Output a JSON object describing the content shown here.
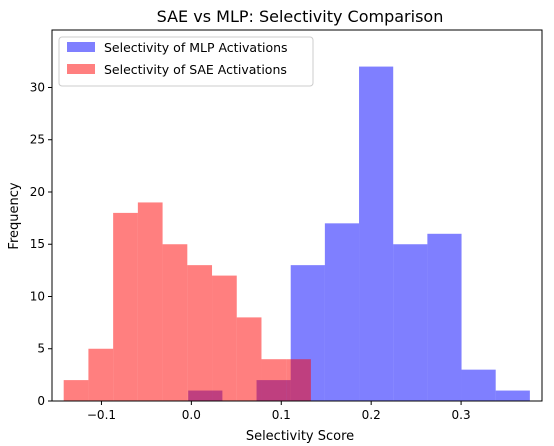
{
  "chart_data": {
    "type": "histogram",
    "title": "SAE vs MLP: Selectivity Comparison",
    "xlabel": "Selectivity Score",
    "ylabel": "Frequency",
    "xlim": [
      -0.155,
      0.39
    ],
    "ylim": [
      0,
      35.5
    ],
    "xticks": [
      -0.1,
      0.0,
      0.1,
      0.2,
      0.3
    ],
    "xtick_labels": [
      "−0.1",
      "0.0",
      "0.1",
      "0.2",
      "0.3"
    ],
    "yticks": [
      0,
      5,
      10,
      15,
      20,
      25,
      30
    ],
    "ytick_labels": [
      "0",
      "5",
      "10",
      "15",
      "20",
      "25",
      "30"
    ],
    "grid": false,
    "legend_position": "top-left",
    "series": [
      {
        "name": "Selectivity of MLP Activations",
        "color": "#0000ff",
        "alpha": 0.5,
        "bin_edges": [
          -0.0035,
          0.0345,
          0.0725,
          0.1105,
          0.1485,
          0.1865,
          0.2245,
          0.2625,
          0.3005,
          0.3385,
          0.3765
        ],
        "counts": [
          1,
          0,
          2,
          13,
          17,
          32,
          15,
          16,
          3,
          1
        ]
      },
      {
        "name": "Selectivity of SAE Activations",
        "color": "#ff0000",
        "alpha": 0.5,
        "bin_edges": [
          -0.142,
          -0.1145,
          -0.087,
          -0.0595,
          -0.032,
          -0.0045,
          0.023,
          0.0505,
          0.078,
          0.1055,
          0.133
        ],
        "counts": [
          2,
          5,
          18,
          19,
          15,
          13,
          12,
          8,
          4,
          4
        ]
      }
    ]
  }
}
